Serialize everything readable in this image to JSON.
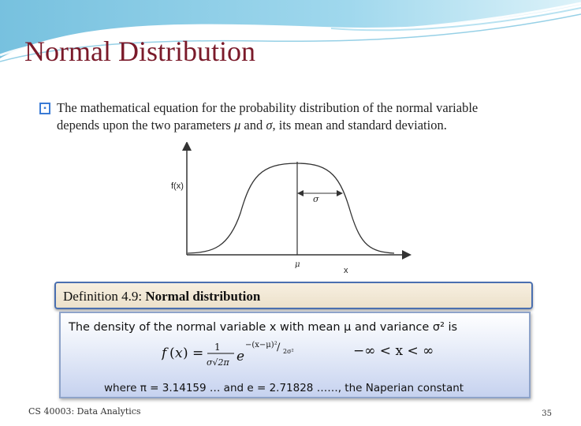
{
  "slide": {
    "title": "Normal Distribution",
    "bullet": {
      "line1": "The mathematical equation for the probability distribution of the normal variable",
      "line2_prefix": "depends upon the two parameters",
      "mu": "μ",
      "and": "and",
      "sigma": "σ",
      "line2_suffix": ", its mean and standard deviation."
    },
    "figure": {
      "y_label": "f(x)",
      "x_label": "x",
      "mean_label": "μ",
      "sigma_label": "σ"
    },
    "definition": {
      "header_prefix": "Definition 4.9:",
      "header_bold": "Normal distribution",
      "line1": "The density of the normal variable x with mean μ and variance σ² is",
      "range": "−∞ < x < ∞",
      "where": "where π = 3.14159 … and e = 2.71828 ……, the Naperian constant"
    },
    "footer": {
      "course": "CS 40003: Data Analytics",
      "page_number": "35"
    }
  },
  "colors": {
    "title": "#7a1a2a",
    "header_border": "#4a6fb0",
    "box_gradient_end": "#c6d2ef",
    "bullet_icon": "#3a7bd5"
  }
}
